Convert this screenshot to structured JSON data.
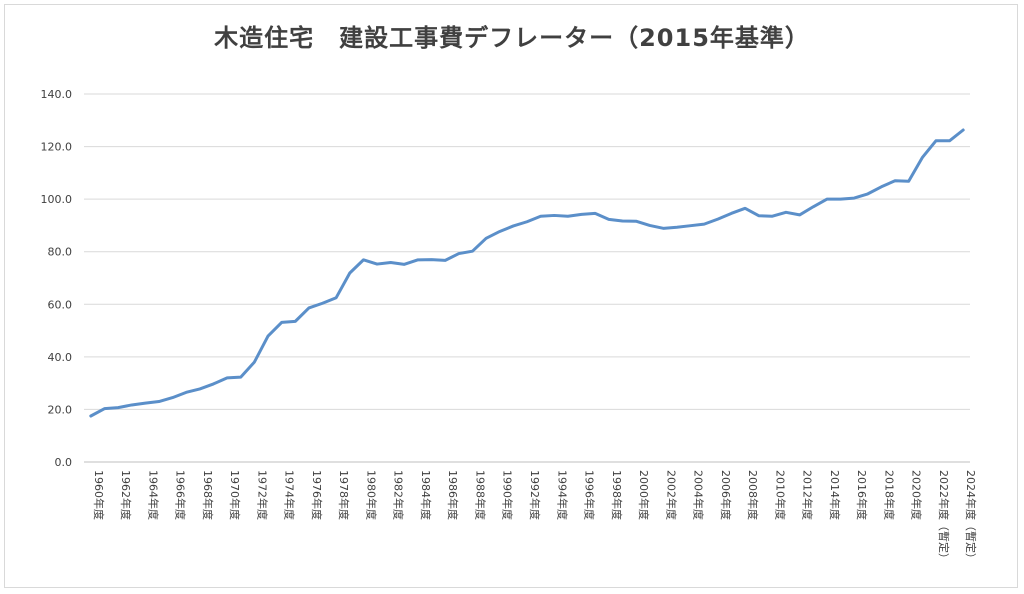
{
  "chart_data": {
    "type": "line",
    "title": "木造住宅　建設工事費デフレーター（2015年基準）",
    "xlabel": "",
    "ylabel": "",
    "ylim": [
      0,
      140
    ],
    "yticks": [
      "0.0",
      "20.0",
      "40.0",
      "60.0",
      "80.0",
      "100.0",
      "120.0",
      "140.0"
    ],
    "grid": true,
    "legend": "none",
    "line_color": "#5b8fc9",
    "x": [
      1960,
      1961,
      1962,
      1963,
      1964,
      1965,
      1966,
      1967,
      1968,
      1969,
      1970,
      1971,
      1972,
      1973,
      1974,
      1975,
      1976,
      1977,
      1978,
      1979,
      1980,
      1981,
      1982,
      1983,
      1984,
      1985,
      1986,
      1987,
      1988,
      1989,
      1990,
      1991,
      1992,
      1993,
      1994,
      1995,
      1996,
      1997,
      1998,
      1999,
      2000,
      2001,
      2002,
      2003,
      2004,
      2005,
      2006,
      2007,
      2008,
      2009,
      2010,
      2011,
      2012,
      2013,
      2014,
      2015,
      2016,
      2017,
      2018,
      2019,
      2020,
      2021,
      2022,
      2023,
      2024
    ],
    "x_labels": [
      "1960年度",
      "1962年度",
      "1964年度",
      "1966年度",
      "1968年度",
      "1970年度",
      "1972年度",
      "1974年度",
      "1976年度",
      "1978年度",
      "1980年度",
      "1982年度",
      "1984年度",
      "1986年度",
      "1988年度",
      "1990年度",
      "1992年度",
      "1994年度",
      "1996年度",
      "1998年度",
      "2000年度",
      "2002年度",
      "2004年度",
      "2006年度",
      "2008年度",
      "2010年度",
      "2012年度",
      "2014年度",
      "2016年度",
      "2018年度",
      "2020年度",
      "2022年度（暫定）",
      "2024年度（暫定）"
    ],
    "series": [
      {
        "values": [
          17.5,
          20.3,
          20.7,
          21.7,
          22.4,
          23.0,
          24.5,
          26.5,
          27.8,
          29.7,
          32.0,
          32.3,
          38.0,
          47.9,
          53.1,
          53.5,
          58.6,
          60.4,
          62.5,
          71.9,
          76.9,
          75.3,
          75.9,
          75.2,
          76.9,
          77.0,
          76.7,
          79.3,
          80.2,
          85.1,
          87.7,
          89.8,
          91.4,
          93.5,
          93.8,
          93.5,
          94.2,
          94.6,
          92.3,
          91.7,
          91.6,
          90.0,
          88.9,
          89.3,
          89.9,
          90.5,
          92.4,
          94.6,
          96.5,
          93.7,
          93.5,
          95.0,
          94.0,
          97.1,
          100.0,
          100.0,
          100.4,
          102.0,
          104.7,
          107.0,
          106.8,
          115.8,
          122.2,
          122.2,
          126.3
        ]
      }
    ]
  }
}
